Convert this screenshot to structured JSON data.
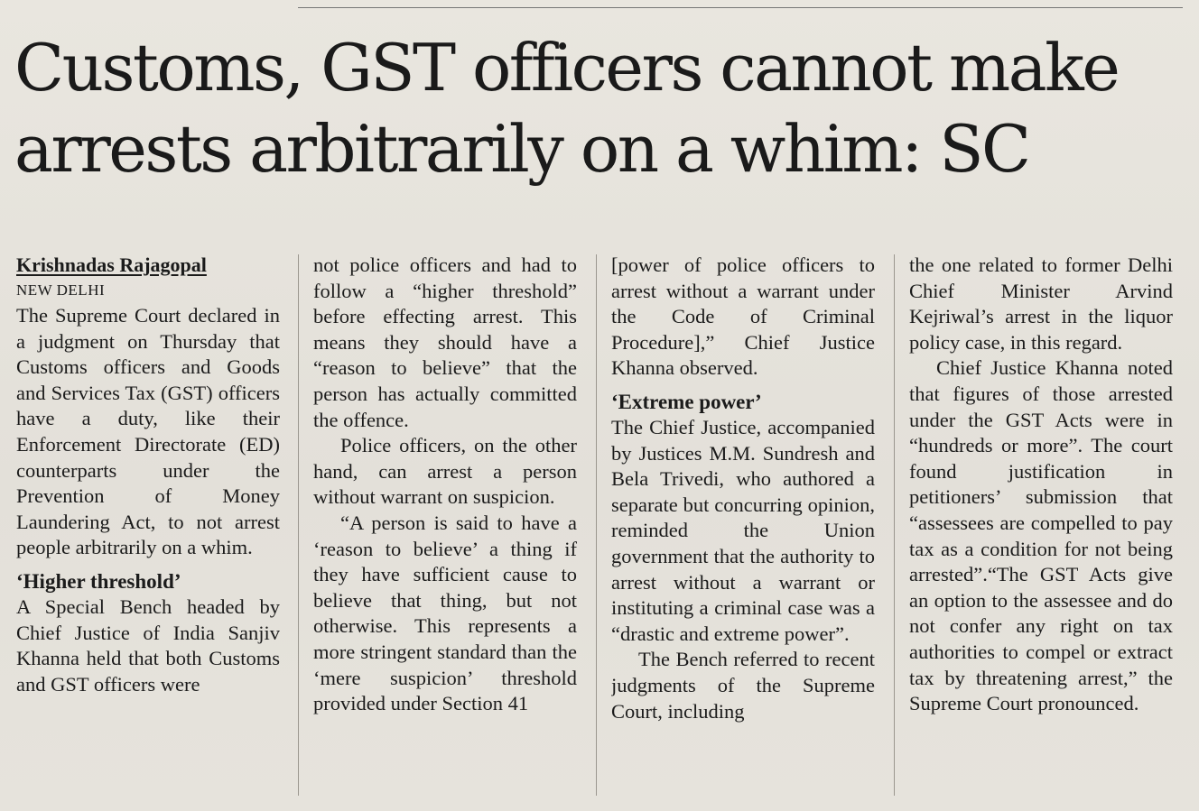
{
  "headline": {
    "line1": "Customs, GST officers cannot make",
    "line2": "arrests arbitrarily on a whim: SC"
  },
  "byline": "Krishnadas Rajagopal",
  "dateline": "NEW DELHI",
  "column1": {
    "p1": "The Supreme Court declared in a judgment on Thursday that Customs officers and Goods and Services Tax (GST) officers have a duty, like their Enforcement Directorate (ED) counterparts under the Prevention of Money Laundering Act, to not arrest people arbitrarily on a whim.",
    "subhead": "‘Higher threshold’",
    "p2": "A Special Bench headed by Chief Justice of India Sanjiv Khanna held that both Customs and GST officers were"
  },
  "column2": {
    "p1": "not police officers and had to follow a “higher threshold” before effecting arrest. This means they should have a “reason to believe” that the person has actually committed the offence.",
    "p2": "Police officers, on the other hand, can arrest a person without warrant on suspicion.",
    "p3": "“A person is said to have a ‘reason to believe’ a thing if they have sufficient cause to believe that thing, but not otherwise. This represents a more stringent standard than the ‘mere suspicion’ threshold provided under Section 41"
  },
  "column3": {
    "p1": "[power of police officers to arrest without a warrant under the Code of Criminal Procedure],” Chief Justice Khanna observed.",
    "subhead": "‘Extreme power’",
    "p2": "The Chief Justice, accompanied by Justices M.M. Sundresh and Bela Trivedi, who authored a separate but concurring opinion, reminded the Union government that the authority to arrest without a warrant or instituting a criminal case was a “drastic and extreme power”.",
    "p3": "The Bench referred to recent judgments of the Supreme Court, including"
  },
  "column4": {
    "p1": "the one related to former Delhi Chief Minister Arvind Kejriwal’s arrest in the liquor policy case, in this regard.",
    "p2": "Chief Justice Khanna noted that figures of those arrested under the GST Acts were in “hundreds or more”. The court found justification in petitioners’ submission that “assessees are compelled to pay tax as a condition for not being arrested”.“The GST Acts give an option to the assessee and do not confer any right on tax authorities to compel or extract tax by threatening arrest,” the Supreme Court pronounced."
  }
}
